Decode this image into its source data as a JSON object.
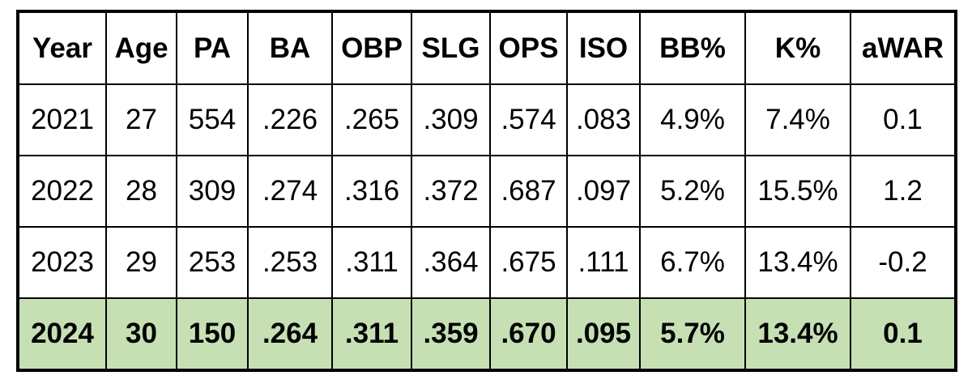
{
  "table": {
    "header": [
      "Year",
      "Age",
      "PA",
      "BA",
      "OBP",
      "SLG",
      "OPS",
      "ISO",
      "BB%",
      "K%",
      "aWAR"
    ],
    "rows": [
      [
        "2021",
        "27",
        "554",
        ".226",
        ".265",
        ".309",
        ".574",
        ".083",
        "4.9%",
        "7.4%",
        "0.1"
      ],
      [
        "2022",
        "28",
        "309",
        ".274",
        ".316",
        ".372",
        ".687",
        ".097",
        "5.2%",
        "15.5%",
        "1.2"
      ],
      [
        "2023",
        "29",
        "253",
        ".253",
        ".311",
        ".364",
        ".675",
        ".111",
        "6.7%",
        "13.4%",
        "-0.2"
      ],
      [
        "2024",
        "30",
        "150",
        ".264",
        ".311",
        ".359",
        ".670",
        ".095",
        "5.7%",
        "13.4%",
        "0.1"
      ]
    ]
  }
}
